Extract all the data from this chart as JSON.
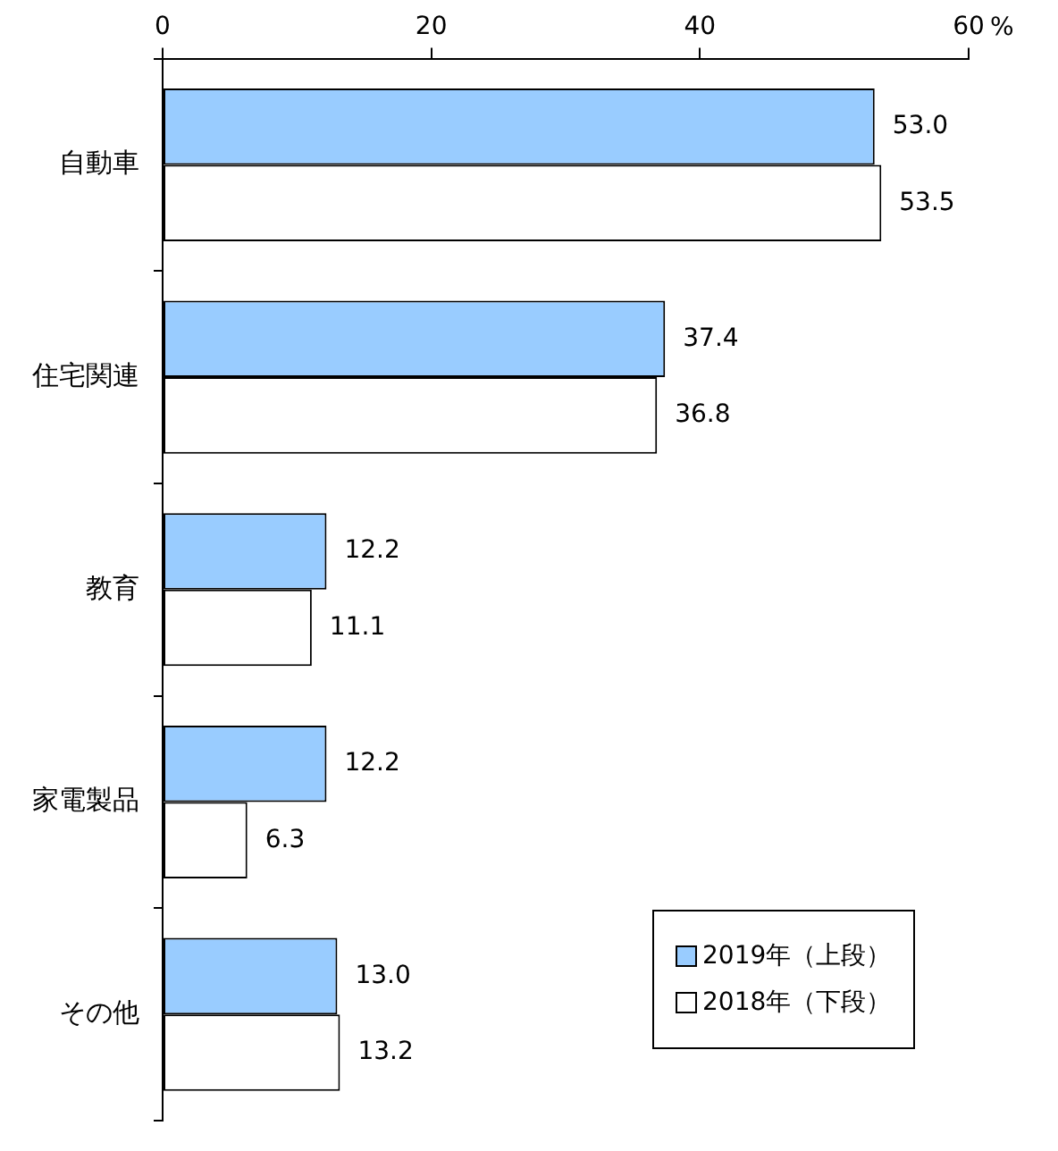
{
  "chart_data": {
    "type": "bar",
    "orientation": "horizontal",
    "xlabel": "%",
    "categories": [
      "自動車",
      "住宅関連",
      "教育",
      "家電製品",
      "その他"
    ],
    "series": [
      {
        "name": "2019年（上段）",
        "color": "#99ccff",
        "values": [
          53.0,
          37.4,
          12.2,
          12.2,
          13.0
        ],
        "value_labels": [
          "53.0",
          "37.4",
          "12.2",
          "12.2",
          "13.0"
        ]
      },
      {
        "name": "2018年（下段）",
        "color": "#ffffff",
        "values": [
          53.5,
          36.8,
          11.1,
          6.3,
          13.2
        ],
        "value_labels": [
          "53.5",
          "36.8",
          "11.1",
          "6.3",
          "13.2"
        ]
      }
    ],
    "xlim": [
      0,
      60
    ],
    "xticks": [
      0,
      20,
      40,
      60
    ],
    "grid": false,
    "legend": "bottom right"
  }
}
